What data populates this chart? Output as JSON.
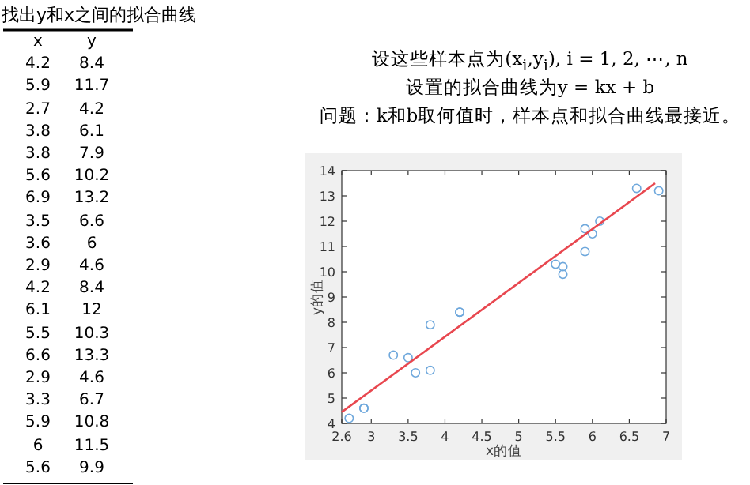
{
  "chart_data": [
    {
      "type": "other",
      "title": "找出y和x之间的拟合曲线",
      "annotations": [
        "x",
        "y",
        "4.2",
        "8.4",
        "5.9",
        "11.7",
        "2.7",
        "4.2",
        "3.8",
        "6.1",
        "3.8",
        "7.9",
        "5.6",
        "10.2",
        "6.9",
        "13.2",
        "3.5",
        "6.6",
        "3.6",
        "6",
        "2.9",
        "4.6",
        "4.2",
        "8.4",
        "6.1",
        "12",
        "5.5",
        "10.3",
        "6.6",
        "13.3",
        "2.9",
        "4.6",
        "3.3",
        "6.7",
        "5.9",
        "10.8",
        "6",
        "11.5",
        "5.6",
        "9.9"
      ]
    },
    {
      "type": "scatter",
      "xlabel": "x的值",
      "ylabel": "y的值",
      "annotations": [
        "设这些样本点为(x$_{i}$,y$_{i}$), i = 1, 2, ⋯, n",
        "设置的拟合曲线为y = kx + b",
        "问题：k和b取何值时，样本点和拟合曲线最接近。"
      ],
      "series": [
        {
          "type": "scatter",
          "color": "#6fa8dc",
          "marker": "circle",
          "x": [
            4.2,
            5.9,
            2.7,
            3.8,
            3.8,
            5.6,
            6.9,
            3.5,
            3.6,
            2.9,
            4.2,
            6.1,
            5.5,
            6.6,
            2.9,
            3.3,
            5.9,
            6,
            5.6
          ],
          "values": [
            8.4,
            11.7,
            4.2,
            6.1,
            7.9,
            10.2,
            13.2,
            6.6,
            6,
            4.6,
            8.4,
            12,
            10.3,
            13.3,
            4.6,
            6.7,
            10.8,
            11.5,
            9.9
          ]
        },
        {
          "type": "line",
          "color": "#e8474f",
          "marker": "none",
          "x": [
            2.6,
            6.85
          ],
          "values": [
            4.45,
            13.5
          ]
        }
      ],
      "xlim": [
        2.6,
        7
      ],
      "ylim": [
        4,
        14
      ],
      "xticks": [
        2.6,
        3,
        3.5,
        4,
        4.5,
        5,
        5.5,
        6,
        6.5,
        7
      ],
      "yticks": [
        4,
        5,
        6,
        7,
        8,
        9,
        10,
        11,
        12,
        13,
        14
      ]
    }
  ]
}
